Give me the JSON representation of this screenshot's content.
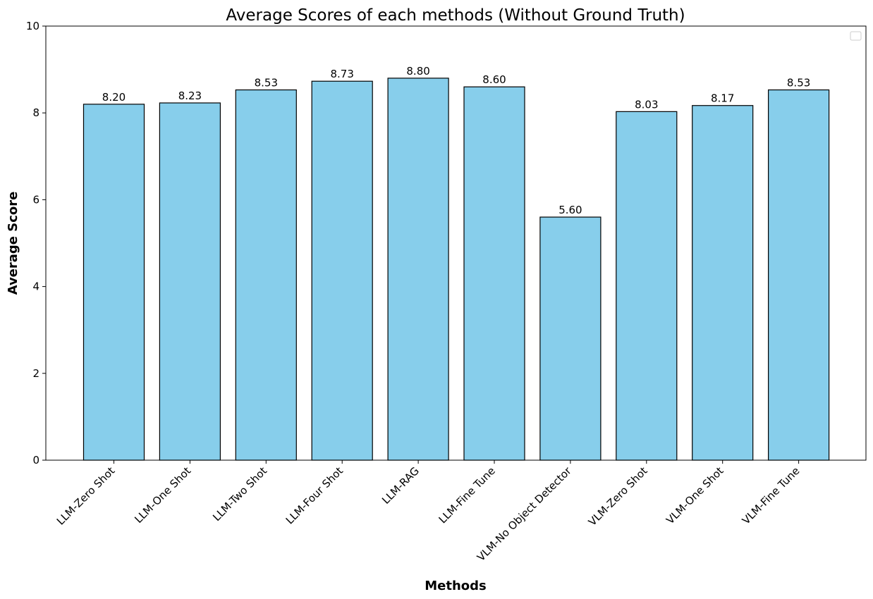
{
  "chart_data": {
    "type": "bar",
    "title": "Average Scores of each methods (Without Ground Truth)",
    "xlabel": "Methods",
    "ylabel": "Average Score",
    "categories": [
      "LLM-Zero Shot",
      "LLM-One Shot",
      "LLM-Two Shot",
      "LLM-Four Shot",
      "LLM-RAG",
      "LLM-Fine Tune",
      "VLM-No Object Detector",
      "VLM-Zero Shot",
      "VLM-One Shot",
      "VLM-Fine Tune"
    ],
    "values": [
      8.2,
      8.23,
      8.53,
      8.73,
      8.8,
      8.6,
      5.6,
      8.03,
      8.17,
      8.53
    ],
    "data_labels": [
      "8.20",
      "8.23",
      "8.53",
      "8.73",
      "8.80",
      "8.60",
      "5.60",
      "8.03",
      "8.17",
      "8.53"
    ],
    "ylim": [
      0,
      10
    ],
    "yticks": [
      0,
      2,
      4,
      6,
      8,
      10
    ],
    "ytick_labels": [
      "0",
      "2",
      "4",
      "6",
      "8",
      "10"
    ],
    "grid": false,
    "legend": {
      "placement": "top-right",
      "entries": []
    },
    "colors": {
      "bar_fill": "#87ceeb",
      "bar_edge": "#000000",
      "axis": "#000000",
      "legend_border": "#cccccc"
    }
  }
}
